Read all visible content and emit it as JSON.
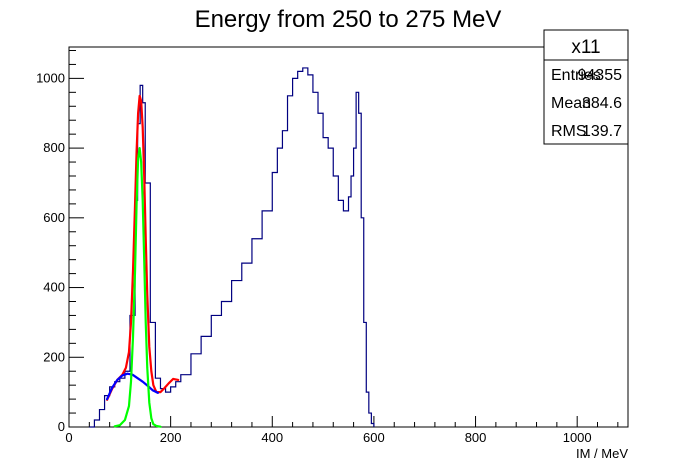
{
  "chart_data": {
    "type": "line",
    "title": "Energy from 250 to 275 MeV",
    "xlabel": "IM / MeV",
    "ylabel": "",
    "xlim": [
      0,
      1100
    ],
    "ylim": [
      0,
      1090
    ],
    "x_ticks": [
      0,
      200,
      400,
      600,
      800,
      1000
    ],
    "y_ticks": [
      0,
      200,
      400,
      600,
      800,
      1000
    ],
    "grid": false,
    "stats_box": {
      "name": "x11",
      "rows": [
        {
          "label": "Entries",
          "value": "94355"
        },
        {
          "label": "Mean",
          "value": "384.6"
        },
        {
          "label": "RMS",
          "value": "139.7"
        }
      ]
    },
    "series": [
      {
        "kind": "histogram",
        "color": "#000080",
        "x": [
          40,
          50,
          60,
          70,
          80,
          90,
          100,
          110,
          120,
          130,
          135,
          140,
          145,
          150,
          160,
          170,
          180,
          190,
          200,
          210,
          220,
          240,
          260,
          280,
          300,
          320,
          340,
          360,
          380,
          400,
          410,
          420,
          430,
          440,
          450,
          460,
          470,
          480,
          490,
          500,
          510,
          520,
          530,
          540,
          550,
          555,
          560,
          565,
          570,
          575,
          580,
          585,
          590,
          595,
          600
        ],
        "y": [
          0,
          20,
          50,
          90,
          115,
          130,
          140,
          160,
          320,
          650,
          870,
          980,
          930,
          700,
          300,
          140,
          110,
          100,
          115,
          130,
          150,
          210,
          260,
          320,
          360,
          420,
          470,
          540,
          620,
          730,
          800,
          850,
          950,
          1000,
          1020,
          1030,
          1010,
          960,
          900,
          830,
          800,
          720,
          650,
          620,
          660,
          720,
          800,
          960,
          900,
          600,
          300,
          100,
          40,
          10,
          0
        ]
      },
      {
        "kind": "total-fit",
        "color": "#ff0000",
        "x": [
          75,
          85,
          95,
          105,
          112,
          118,
          122,
          126,
          130,
          133,
          136,
          139,
          142,
          145,
          148,
          151,
          154,
          158,
          162,
          166,
          172,
          180,
          188,
          196,
          205,
          215
        ],
        "y": [
          78,
          110,
          135,
          150,
          170,
          215,
          300,
          450,
          640,
          790,
          900,
          950,
          935,
          860,
          720,
          540,
          380,
          230,
          160,
          120,
          100,
          100,
          112,
          125,
          138,
          135
        ]
      },
      {
        "kind": "background-fit",
        "color": "#0000ff",
        "x": [
          75,
          85,
          95,
          105,
          115,
          125,
          135,
          145,
          155,
          165,
          175
        ],
        "y": [
          80,
          113,
          135,
          148,
          153,
          150,
          140,
          130,
          118,
          105,
          98
        ]
      },
      {
        "kind": "signal-fit",
        "color": "#00ff00",
        "x": [
          90,
          100,
          110,
          118,
          122,
          126,
          130,
          133,
          136,
          139,
          142,
          145,
          148,
          151,
          154,
          158,
          162,
          166,
          172,
          180
        ],
        "y": [
          2,
          5,
          20,
          60,
          130,
          260,
          450,
          640,
          770,
          800,
          760,
          650,
          480,
          300,
          170,
          70,
          25,
          8,
          3,
          1
        ]
      }
    ]
  }
}
